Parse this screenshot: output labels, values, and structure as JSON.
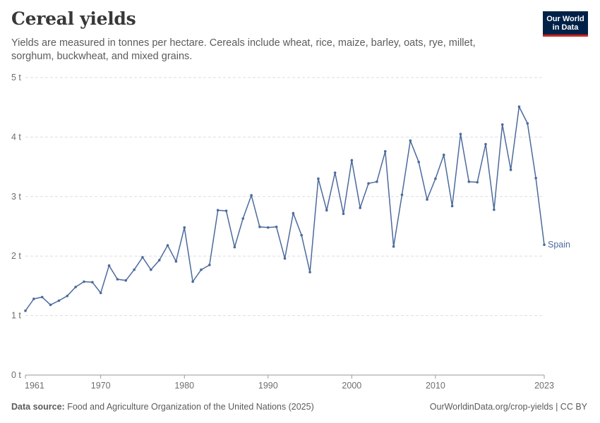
{
  "header": {
    "title": "Cereal yields",
    "subtitle": "Yields are measured in tonnes per hectare. Cereals include wheat, rice, maize, barley, oats, rye, millet, sorghum, buckwheat, and mixed grains."
  },
  "logo": {
    "line1": "Our World",
    "line2": "in Data"
  },
  "footer": {
    "source_label": "Data source:",
    "source_text": "Food and Agriculture Organization of the United Nations (2025)",
    "right_text": "OurWorldinData.org/crop-yields | CC BY"
  },
  "colors": {
    "series": "#4c6a9c",
    "grid": "#dddddd",
    "axis": "#999999",
    "logo_bg": "#002147",
    "logo_accent": "#ce261e"
  },
  "chart_data": {
    "type": "line",
    "title": "Cereal yields",
    "xlim": [
      1961,
      2023
    ],
    "ylim": [
      0,
      5
    ],
    "yticks": [
      0,
      1,
      2,
      3,
      4,
      5
    ],
    "ytick_labels": [
      "0 t",
      "1 t",
      "2 t",
      "3 t",
      "4 t",
      "5 t"
    ],
    "xticks": [
      1961,
      1970,
      1980,
      1990,
      2000,
      2010,
      2023
    ],
    "xtick_labels": [
      "1961",
      "1970",
      "1980",
      "1990",
      "2000",
      "2010",
      "2023"
    ],
    "grid": true,
    "series": [
      {
        "name": "Spain",
        "x": [
          1961,
          1962,
          1963,
          1964,
          1965,
          1966,
          1967,
          1968,
          1969,
          1970,
          1971,
          1972,
          1973,
          1974,
          1975,
          1976,
          1977,
          1978,
          1979,
          1980,
          1981,
          1982,
          1983,
          1984,
          1985,
          1986,
          1987,
          1988,
          1989,
          1990,
          1991,
          1992,
          1993,
          1994,
          1995,
          1996,
          1997,
          1998,
          1999,
          2000,
          2001,
          2002,
          2003,
          2004,
          2005,
          2006,
          2007,
          2008,
          2009,
          2010,
          2011,
          2012,
          2013,
          2014,
          2015,
          2016,
          2017,
          2018,
          2019,
          2020,
          2021,
          2022,
          2023
        ],
        "values": [
          1.08,
          1.28,
          1.31,
          1.18,
          1.25,
          1.33,
          1.48,
          1.57,
          1.56,
          1.38,
          1.84,
          1.61,
          1.59,
          1.77,
          1.98,
          1.77,
          1.93,
          2.18,
          1.91,
          2.48,
          1.57,
          1.77,
          1.85,
          2.77,
          2.76,
          2.15,
          2.63,
          3.02,
          2.49,
          2.48,
          2.49,
          1.96,
          2.72,
          2.35,
          1.73,
          3.3,
          2.77,
          3.4,
          2.71,
          3.61,
          2.81,
          3.22,
          3.25,
          3.76,
          2.16,
          3.03,
          3.94,
          3.58,
          2.95,
          3.3,
          3.7,
          2.84,
          4.05,
          3.25,
          3.24,
          3.88,
          2.78,
          4.21,
          3.45,
          4.51,
          4.23,
          3.31,
          2.19
        ]
      }
    ]
  }
}
